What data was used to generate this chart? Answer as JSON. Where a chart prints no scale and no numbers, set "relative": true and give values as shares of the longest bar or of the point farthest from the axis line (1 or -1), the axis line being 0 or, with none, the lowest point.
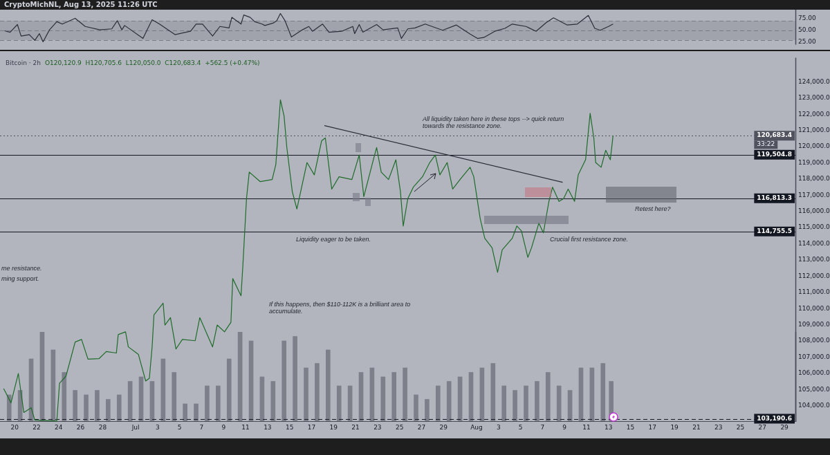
{
  "chart_data": [
    {
      "type": "line",
      "title": "CryptoMichNL, Aug 13, 2025 11:26 UTC",
      "tick_labels": "y",
      "marker": "none",
      "xlim": [
        "2025-06-18T16:00",
        "2025-08-30T00:00"
      ],
      "ylim": [
        20,
        93
      ],
      "yticks": [
        {
          "value": 25,
          "label": "25.00"
        },
        {
          "value": 50,
          "label": "50.00"
        },
        {
          "value": 75,
          "label": "75.00"
        }
      ],
      "bands": [
        {
          "axis": "y",
          "from": 30,
          "to": 70,
          "color": "#8a8d96"
        }
      ],
      "ref_lines": [
        {
          "axis": "y",
          "value": 70,
          "color": "#787b86",
          "line_style": "dashed"
        },
        {
          "axis": "y",
          "value": 50,
          "color": "#787b86",
          "line_style": "dashed"
        },
        {
          "axis": "y",
          "value": 30,
          "color": "#787b86",
          "line_style": "dashed"
        }
      ],
      "series": [
        {
          "type": "line",
          "color": "#2a2e39",
          "x": [
            "2025-06-19T02:00",
            "2025-06-19T14:00",
            "2025-06-20T06:00",
            "2025-06-20T14:00",
            "2025-06-21T08:00",
            "2025-06-21T20:00",
            "2025-06-22T06:00",
            "2025-06-22T14:00",
            "2025-06-23T04:00",
            "2025-06-23T20:00",
            "2025-06-24T08:00",
            "2025-06-25T12:00",
            "2025-06-26T10:00",
            "2025-06-27T18:00",
            "2025-06-28T20:00",
            "2025-06-29T08:00",
            "2025-06-29T18:00",
            "2025-06-30T00:00",
            "2025-07-01T16:00",
            "2025-07-02T12:00",
            "2025-07-03T04:00",
            "2025-07-04T14:00",
            "2025-07-06T00:00",
            "2025-07-06T12:00",
            "2025-07-07T02:00",
            "2025-07-08T00:00",
            "2025-07-08T16:00",
            "2025-07-09T12:00",
            "2025-07-09T18:00",
            "2025-07-10T14:00",
            "2025-07-10T20:00",
            "2025-07-11T10:00",
            "2025-07-11T20:00",
            "2025-07-12T12:00",
            "2025-07-12T18:00",
            "2025-07-13T12:00",
            "2025-07-13T20:00",
            "2025-07-14T04:00",
            "2025-07-14T14:00",
            "2025-07-15T04:00",
            "2025-07-16T04:00",
            "2025-07-16T18:00",
            "2025-07-17T02:00",
            "2025-07-18T00:00",
            "2025-07-18T14:00",
            "2025-07-19T18:00",
            "2025-07-20T18:00",
            "2025-07-20T22:00",
            "2025-07-21T08:00",
            "2025-07-21T16:00",
            "2025-07-22T22:00",
            "2025-07-23T12:00",
            "2025-07-24T20:00",
            "2025-07-25T04:00",
            "2025-07-25T18:00",
            "2025-07-26T10:00",
            "2025-07-27T08:00",
            "2025-07-28T22:00",
            "2025-07-30T04:00",
            "2025-07-31T10:00",
            "2025-08-01T02:00",
            "2025-08-01T16:00",
            "2025-08-02T16:00",
            "2025-08-03T14:00",
            "2025-08-04T06:00",
            "2025-08-05T12:00",
            "2025-08-06T10:00",
            "2025-08-07T08:00",
            "2025-08-08T00:00",
            "2025-08-09T06:00",
            "2025-08-10T04:00",
            "2025-08-11T04:00",
            "2025-08-11T18:00",
            "2025-08-12T06:00",
            "2025-08-13T00:00",
            "2025-08-13T10:00"
          ],
          "values": [
            49,
            46,
            62,
            38,
            41,
            29,
            43,
            26,
            51,
            68,
            63,
            75,
            58,
            51,
            53,
            70,
            51,
            60,
            33,
            72,
            63,
            41,
            48,
            63,
            63,
            38,
            58,
            55,
            77,
            63,
            82,
            77,
            68,
            63,
            60,
            65,
            70,
            85,
            70,
            36,
            51,
            58,
            48,
            63,
            46,
            48,
            58,
            43,
            62,
            46,
            62,
            51,
            55,
            33,
            53,
            55,
            63,
            50,
            61,
            42,
            33,
            35,
            48,
            54,
            63,
            58,
            48,
            66,
            76,
            61,
            63,
            81,
            54,
            50,
            58,
            63
          ]
        }
      ]
    },
    {
      "type": "line",
      "title": "Bitcoin · 2h",
      "subtitle": "O120,120.9  H120,705.6  L120,050.0  C120,683.4  +562.5 (+0.47%)",
      "marker": "none",
      "xlim": [
        "2025-06-18T16:00",
        "2025-08-30T00:00"
      ],
      "xticks": [
        {
          "value": "2025-06-20",
          "label": "20"
        },
        {
          "value": "2025-06-22",
          "label": "22"
        },
        {
          "value": "2025-06-24",
          "label": "24"
        },
        {
          "value": "2025-06-26",
          "label": "26"
        },
        {
          "value": "2025-06-28",
          "label": "28"
        },
        {
          "value": "2025-07-01",
          "label": "Jul"
        },
        {
          "value": "2025-07-03",
          "label": "3"
        },
        {
          "value": "2025-07-05",
          "label": "5"
        },
        {
          "value": "2025-07-07",
          "label": "7"
        },
        {
          "value": "2025-07-09",
          "label": "9"
        },
        {
          "value": "2025-07-11",
          "label": "11"
        },
        {
          "value": "2025-07-13",
          "label": "13"
        },
        {
          "value": "2025-07-15",
          "label": "15"
        },
        {
          "value": "2025-07-17",
          "label": "17"
        },
        {
          "value": "2025-07-19",
          "label": "19"
        },
        {
          "value": "2025-07-21",
          "label": "21"
        },
        {
          "value": "2025-07-23",
          "label": "23"
        },
        {
          "value": "2025-07-25",
          "label": "25"
        },
        {
          "value": "2025-07-27",
          "label": "27"
        },
        {
          "value": "2025-07-29",
          "label": "29"
        },
        {
          "value": "2025-08-01",
          "label": "Aug"
        },
        {
          "value": "2025-08-03",
          "label": "3"
        },
        {
          "value": "2025-08-05",
          "label": "5"
        },
        {
          "value": "2025-08-07",
          "label": "7"
        },
        {
          "value": "2025-08-09",
          "label": "9"
        },
        {
          "value": "2025-08-11",
          "label": "11"
        },
        {
          "value": "2025-08-13",
          "label": "13"
        },
        {
          "value": "2025-08-15",
          "label": "15"
        },
        {
          "value": "2025-08-17",
          "label": "17"
        },
        {
          "value": "2025-08-19",
          "label": "19"
        },
        {
          "value": "2025-08-21",
          "label": "21"
        },
        {
          "value": "2025-08-23",
          "label": "23"
        },
        {
          "value": "2025-08-25",
          "label": "25"
        },
        {
          "value": "2025-08-27",
          "label": "27"
        },
        {
          "value": "2025-08-29",
          "label": "29"
        }
      ],
      "ylim": [
        103000,
        125500
      ],
      "yticks": [
        {
          "value": 104000,
          "label": "104,000.0"
        },
        {
          "value": 105000,
          "label": "105,000.0"
        },
        {
          "value": 106000,
          "label": "106,000.0"
        },
        {
          "value": 107000,
          "label": "107,000.0"
        },
        {
          "value": 108000,
          "label": "108,000.0"
        },
        {
          "value": 109000,
          "label": "109,000.0"
        },
        {
          "value": 110000,
          "label": "110,000.0"
        },
        {
          "value": 111000,
          "label": "111,000.0"
        },
        {
          "value": 112000,
          "label": "112,000.0"
        },
        {
          "value": 113000,
          "label": "113,000.0"
        },
        {
          "value": 114000,
          "label": "114,000.0"
        },
        {
          "value": 115000,
          "label": "115,000.0"
        },
        {
          "value": 116000,
          "label": "116,000.0"
        },
        {
          "value": 117000,
          "label": "117,000.0"
        },
        {
          "value": 118000,
          "label": "118,000.0"
        },
        {
          "value": 119000,
          "label": "119,000.0"
        },
        {
          "value": 120000,
          "label": "120,000.0"
        },
        {
          "value": 121000,
          "label": "121,000.0"
        },
        {
          "value": 122000,
          "label": "122,000.0"
        },
        {
          "value": 123000,
          "label": "123,000.0"
        },
        {
          "value": 124000,
          "label": "124,000.0"
        }
      ],
      "ref_lines": [
        {
          "axis": "y",
          "value": 120683.4,
          "label": "120,683.4",
          "color": "#50535e",
          "line_style": "dotted"
        },
        {
          "axis": "y",
          "value": 119504.8,
          "label": "119,504.8",
          "color": "#131722",
          "line_style": "solid"
        },
        {
          "axis": "y",
          "value": 116813.3,
          "label": "116,813.3",
          "color": "#131722",
          "line_style": "solid"
        },
        {
          "axis": "y",
          "value": 114755.5,
          "label": "114,755.5",
          "color": "#131722",
          "line_style": "solid"
        },
        {
          "axis": "y",
          "value": 103190.6,
          "label": "103,190.6",
          "color": "#131722",
          "line_style": "dashed"
        }
      ],
      "annotations": [
        "33:22",
        "All liquidity taken here in these tops --> quick return towards the resistance zone.",
        "Liquidity eager to be taken.",
        "Retest here?",
        "Crucial first resistance zone.",
        "If this happens, then $110-112K is a brilliant area to accumulate.",
        "me resistance.",
        "ming support."
      ],
      "series": [
        {
          "type": "line",
          "color": "#1e6b2a",
          "x": [
            "2025-06-19T00:00",
            "2025-06-19T16:00",
            "2025-06-20T08:00",
            "2025-06-20T20:00",
            "2025-06-21T12:00",
            "2025-06-21T20:00",
            "2025-06-23T20:00",
            "2025-06-24T02:00",
            "2025-06-24T16:00",
            "2025-06-25T12:00",
            "2025-06-26T02:00",
            "2025-06-26T16:00",
            "2025-06-27T16:00",
            "2025-06-28T08:00",
            "2025-06-29T06:00",
            "2025-06-29T10:00",
            "2025-06-30T02:00",
            "2025-06-30T08:00",
            "2025-07-01T06:00",
            "2025-07-01T22:00",
            "2025-07-02T06:00",
            "2025-07-02T12:00",
            "2025-07-02T16:00",
            "2025-07-03T12:00",
            "2025-07-03T16:00",
            "2025-07-04T04:00",
            "2025-07-04T16:00",
            "2025-07-05T06:00",
            "2025-07-06T10:00",
            "2025-07-06T20:00",
            "2025-07-08T00:00",
            "2025-07-08T10:00",
            "2025-07-09T02:00",
            "2025-07-09T16:00",
            "2025-07-09T20:00",
            "2025-07-10T14:00",
            "2025-07-10T18:00",
            "2025-07-11T02:00",
            "2025-07-11T08:00",
            "2025-07-12T08:00",
            "2025-07-13T10:00",
            "2025-07-13T18:00",
            "2025-07-14T04:00",
            "2025-07-14T12:00",
            "2025-07-14T18:00",
            "2025-07-15T06:00",
            "2025-07-15T16:00",
            "2025-07-16T14:00",
            "2025-07-17T06:00",
            "2025-07-17T22:00",
            "2025-07-18T06:00",
            "2025-07-18T20:00",
            "2025-07-19T12:00",
            "2025-07-20T16:00",
            "2025-07-21T08:00",
            "2025-07-21T18:00",
            "2025-07-22T16:00",
            "2025-07-22T22:00",
            "2025-07-23T08:00",
            "2025-07-24T00:00",
            "2025-07-24T16:00",
            "2025-07-25T02:00",
            "2025-07-25T08:00",
            "2025-07-25T18:00",
            "2025-07-26T06:00",
            "2025-07-27T02:00",
            "2025-07-27T18:00",
            "2025-07-28T06:00",
            "2025-07-28T16:00",
            "2025-07-29T08:00",
            "2025-07-29T20:00",
            "2025-07-30T12:00",
            "2025-07-31T10:00",
            "2025-07-31T18:00",
            "2025-08-01T08:00",
            "2025-08-01T18:00",
            "2025-08-02T10:00",
            "2025-08-02T22:00",
            "2025-08-03T08:00",
            "2025-08-04T06:00",
            "2025-08-04T16:00",
            "2025-08-05T02:00",
            "2025-08-05T16:00",
            "2025-08-06T00:00",
            "2025-08-06T16:00",
            "2025-08-07T02:00",
            "2025-08-07T14:00",
            "2025-08-07T22:00",
            "2025-08-08T12:00",
            "2025-08-08T22:00",
            "2025-08-09T08:00",
            "2025-08-09T22:00",
            "2025-08-10T06:00",
            "2025-08-10T22:00",
            "2025-08-11T08:00",
            "2025-08-11T16:00",
            "2025-08-11T20:00",
            "2025-08-12T08:00",
            "2025-08-12T18:00",
            "2025-08-13T04:00",
            "2025-08-13T10:00"
          ],
          "values": [
            105050,
            104170,
            105990,
            103580,
            103870,
            103100,
            103050,
            105390,
            105820,
            107930,
            108090,
            106870,
            106900,
            107340,
            107250,
            108390,
            108560,
            107630,
            107170,
            105520,
            105690,
            107630,
            109610,
            110330,
            108980,
            109440,
            107500,
            108090,
            108010,
            109440,
            107630,
            108980,
            108560,
            109150,
            111850,
            110790,
            112610,
            116790,
            118430,
            117840,
            117970,
            118900,
            122900,
            121890,
            119950,
            117210,
            116150,
            119020,
            118260,
            120370,
            120540,
            117380,
            118140,
            117970,
            119490,
            116910,
            119320,
            119950,
            118430,
            117970,
            119190,
            117210,
            115100,
            116790,
            117500,
            118140,
            119020,
            119490,
            118260,
            119020,
            117380,
            117970,
            118730,
            118140,
            115560,
            114340,
            113750,
            112230,
            113620,
            114340,
            115100,
            114800,
            113160,
            113750,
            115270,
            114680,
            116620,
            117500,
            116620,
            116790,
            117380,
            116620,
            118260,
            119190,
            122060,
            120540,
            119020,
            118730,
            119780,
            119190,
            120683.4
          ]
        },
        {
          "type": "line",
          "color": "#2a2e39",
          "x": [
            "2025-07-18T04:00",
            "2025-08-08T20:00"
          ],
          "values": [
            121300,
            117800
          ]
        }
      ]
    },
    {
      "type": "bar",
      "relative": true,
      "tick_labels": false,
      "xlim": [
        "2025-06-18T16:00",
        "2025-08-30T00:00"
      ],
      "series": [
        {
          "color": "#7d808a",
          "x": [
            "2025-06-19T12:00",
            "2025-06-20T12:00",
            "2025-06-21T12:00",
            "2025-06-22T12:00",
            "2025-06-23T12:00",
            "2025-06-24T12:00",
            "2025-06-25T12:00",
            "2025-06-26T12:00",
            "2025-06-27T12:00",
            "2025-06-28T12:00",
            "2025-06-29T12:00",
            "2025-06-30T12:00",
            "2025-07-01T12:00",
            "2025-07-02T12:00",
            "2025-07-03T12:00",
            "2025-07-04T12:00",
            "2025-07-05T12:00",
            "2025-07-06T12:00",
            "2025-07-07T12:00",
            "2025-07-08T12:00",
            "2025-07-09T12:00",
            "2025-07-10T12:00",
            "2025-07-11T12:00",
            "2025-07-12T12:00",
            "2025-07-13T12:00",
            "2025-07-14T12:00",
            "2025-07-15T12:00",
            "2025-07-16T12:00",
            "2025-07-17T12:00",
            "2025-07-18T12:00",
            "2025-07-19T12:00",
            "2025-07-20T12:00",
            "2025-07-21T12:00",
            "2025-07-22T12:00",
            "2025-07-23T12:00",
            "2025-07-24T12:00",
            "2025-07-25T12:00",
            "2025-07-26T12:00",
            "2025-07-27T12:00",
            "2025-07-28T12:00",
            "2025-07-29T12:00",
            "2025-07-30T12:00",
            "2025-07-31T12:00",
            "2025-08-01T12:00",
            "2025-08-02T12:00",
            "2025-08-03T12:00",
            "2025-08-04T12:00",
            "2025-08-05T12:00",
            "2025-08-06T12:00",
            "2025-08-07T12:00",
            "2025-08-08T12:00",
            "2025-08-09T12:00",
            "2025-08-10T12:00",
            "2025-08-11T12:00",
            "2025-08-12T12:00",
            "2025-08-13T06:00"
          ],
          "values": [
            0.3,
            0.35,
            0.7,
            1,
            0.8,
            0.55,
            0.35,
            0.3,
            0.35,
            0.25,
            0.3,
            0.45,
            0.5,
            0.45,
            0.7,
            0.55,
            0.2,
            0.2,
            0.4,
            0.4,
            0.7,
            1,
            0.9,
            0.5,
            0.45,
            0.9,
            0.95,
            0.6,
            0.65,
            0.8,
            0.4,
            0.4,
            0.55,
            0.6,
            0.5,
            0.55,
            0.6,
            0.3,
            0.25,
            0.4,
            0.45,
            0.5,
            0.55,
            0.6,
            0.65,
            0.4,
            0.35,
            0.4,
            0.45,
            0.55,
            0.4,
            0.35,
            0.6,
            0.6,
            0.65,
            0.45
          ]
        }
      ]
    }
  ]
}
